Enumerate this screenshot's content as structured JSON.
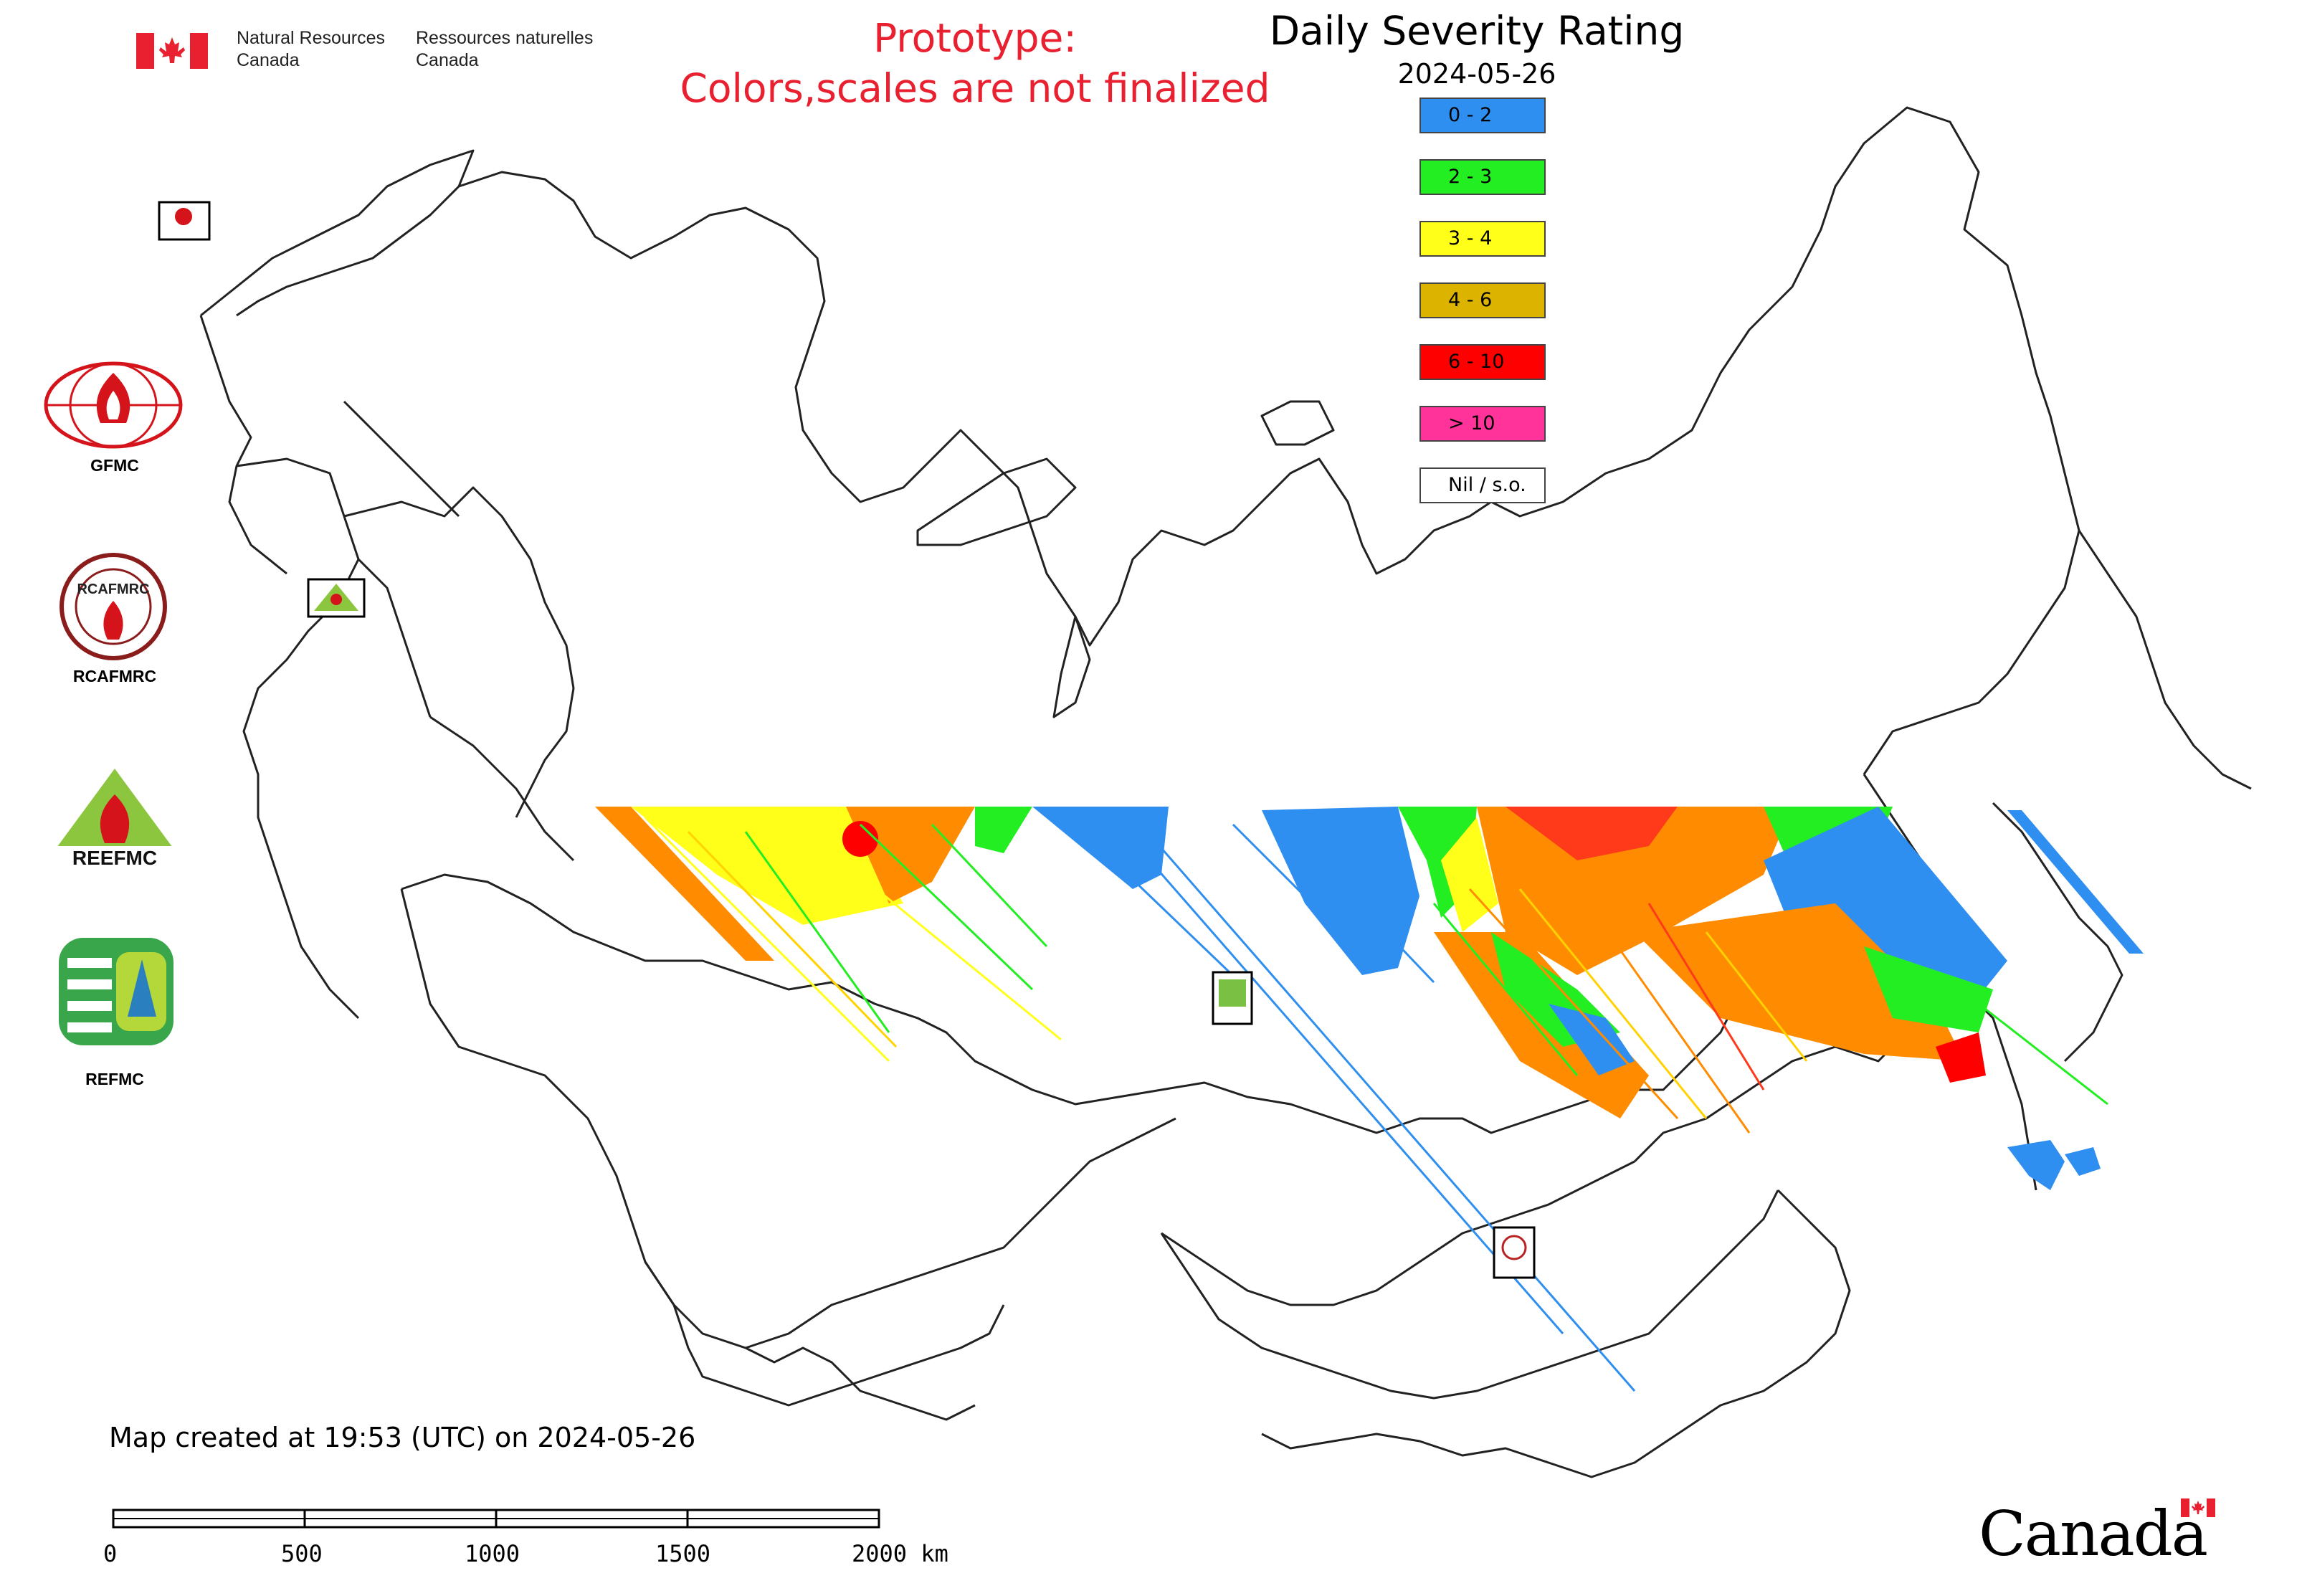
{
  "header": {
    "dept_en_line1": "Natural Resources",
    "dept_en_line2": "Canada",
    "dept_fr_line1": "Ressources naturelles",
    "dept_fr_line2": "Canada",
    "flag_icon": "canada-flag-icon"
  },
  "prototype_note": {
    "line1": "Prototype:",
    "line2": "Colors,scales are not finalized",
    "color": "#e8202f"
  },
  "map": {
    "title": "Daily Severity Rating",
    "date": "2024-05-26",
    "created_note": "Map created at 19:53 (UTC) on 2024-05-26"
  },
  "legend": [
    {
      "label": "0 - 2",
      "color": "#2f8ff0"
    },
    {
      "label": "2 - 3",
      "color": "#22ee22"
    },
    {
      "label": "3 - 4",
      "color": "#ffff1a"
    },
    {
      "label": "4 - 6",
      "color": "#dcb400"
    },
    {
      "label": "6 - 10",
      "color": "#ff0000"
    },
    {
      "label": "> 10",
      "color": "#ff3399"
    },
    {
      "label": "Nil / s.o.",
      "color": "#ffffff"
    }
  ],
  "logos": [
    {
      "label": "GFMC"
    },
    {
      "label": "RCAFMRC"
    },
    {
      "label": "REEFMC"
    },
    {
      "label": "REFMC"
    }
  ],
  "scale_bar": {
    "ticks": [
      "0",
      "500",
      "1000",
      "1500",
      "2000 km"
    ]
  },
  "wordmark": "Canada"
}
